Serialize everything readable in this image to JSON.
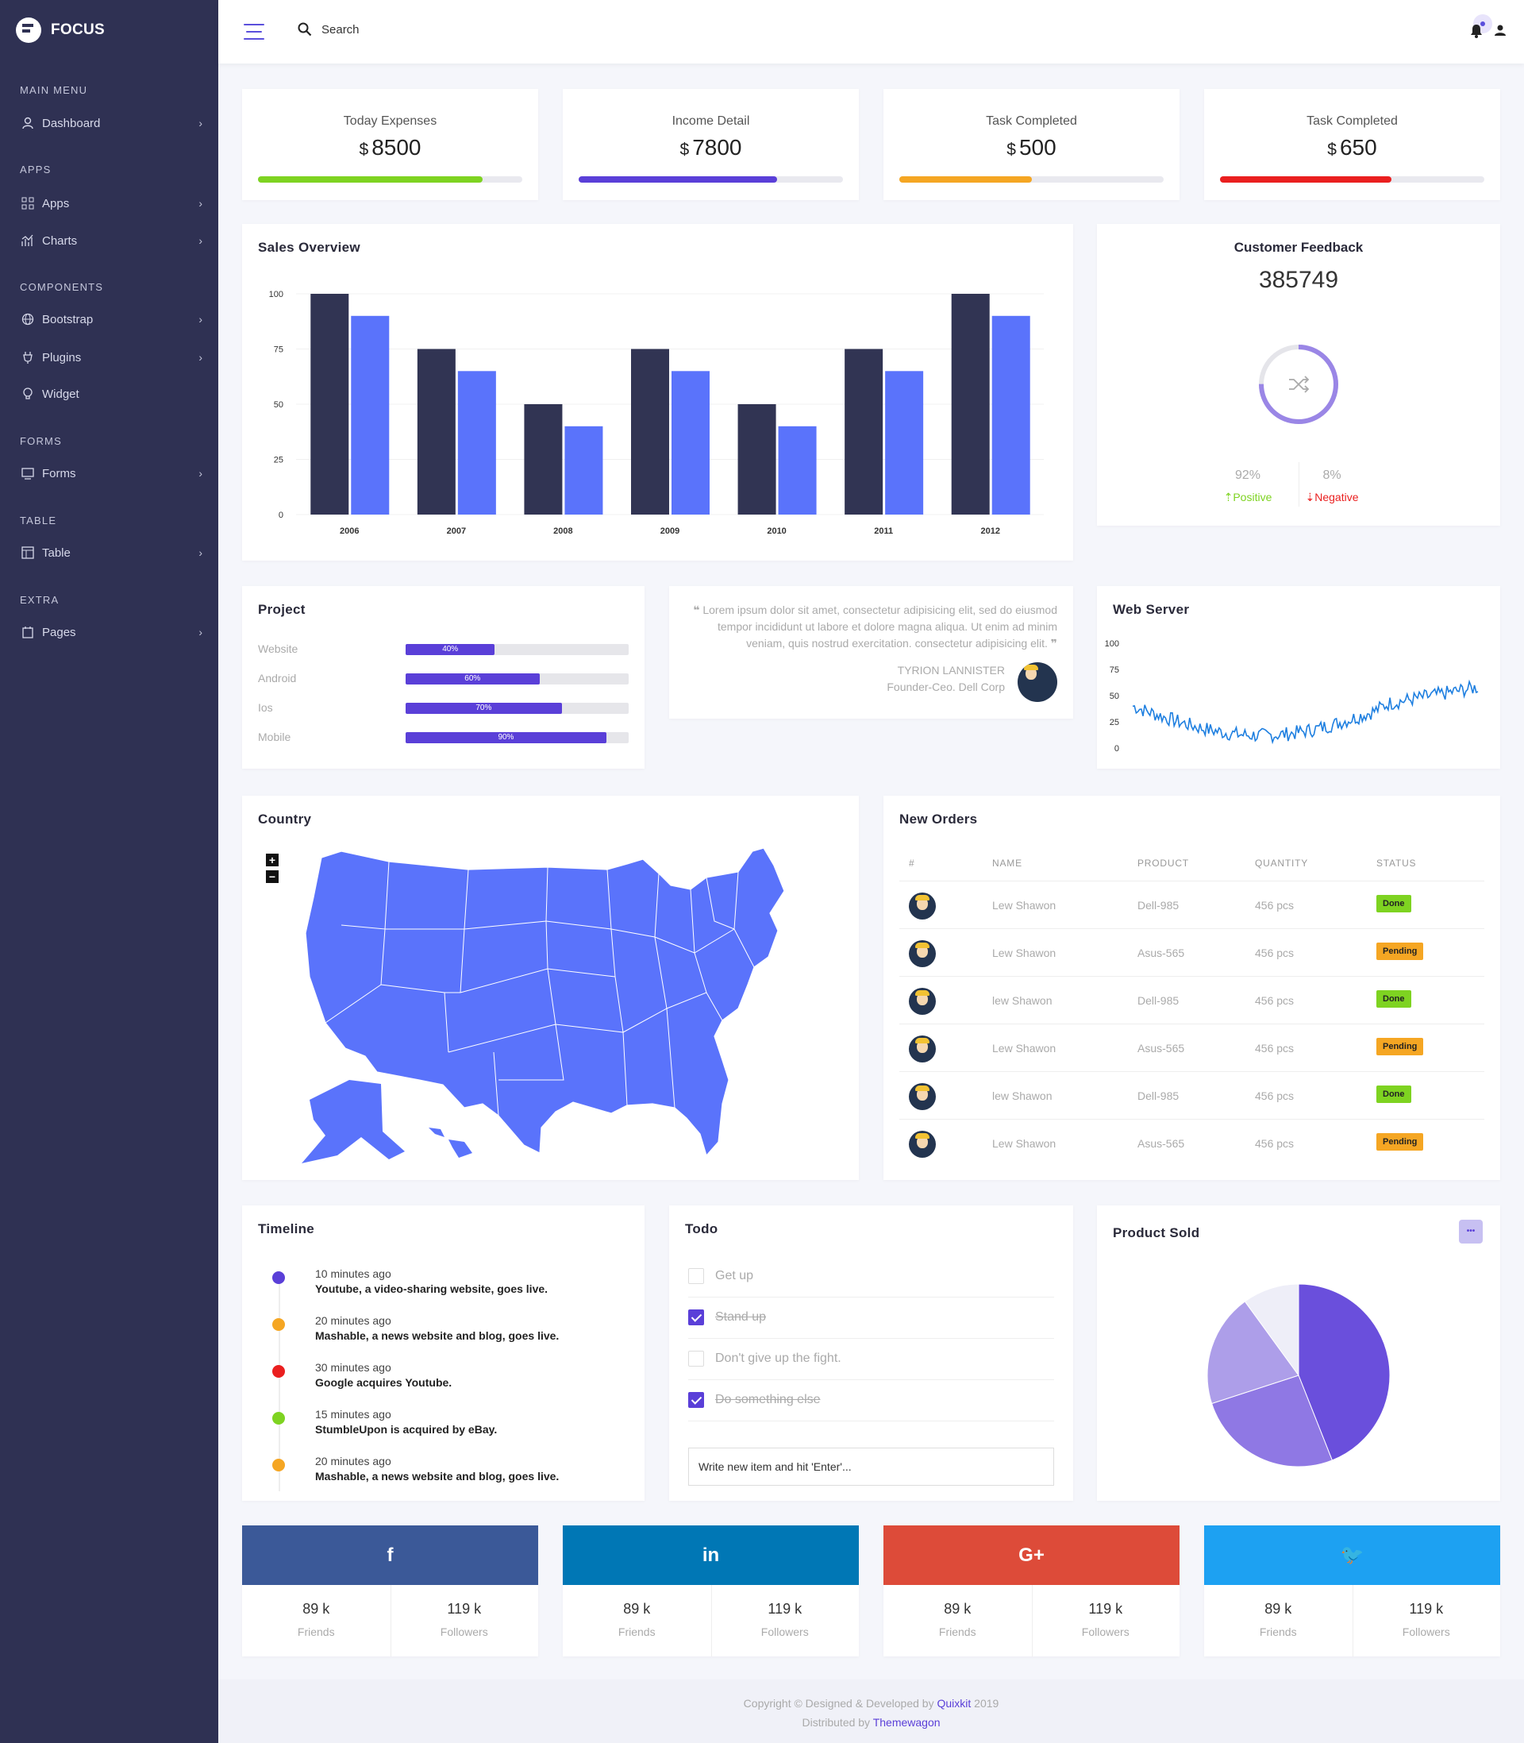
{
  "brand": {
    "name": "FOCUS"
  },
  "sidebar": {
    "sections": [
      {
        "title": "MAIN MENU",
        "items": [
          {
            "label": "Dashboard",
            "icon": "user-icon",
            "chevron": true
          }
        ]
      },
      {
        "title": "APPS",
        "items": [
          {
            "label": "Apps",
            "icon": "grid-icon",
            "chevron": true
          },
          {
            "label": "Charts",
            "icon": "chart-icon",
            "chevron": true
          }
        ]
      },
      {
        "title": "COMPONENTS",
        "items": [
          {
            "label": "Bootstrap",
            "icon": "globe-icon",
            "chevron": true
          },
          {
            "label": "Plugins",
            "icon": "plugin-icon",
            "chevron": true
          },
          {
            "label": "Widget",
            "icon": "bulb-icon",
            "chevron": false
          }
        ]
      },
      {
        "title": "FORMS",
        "items": [
          {
            "label": "Forms",
            "icon": "form-icon",
            "chevron": true
          }
        ]
      },
      {
        "title": "TABLE",
        "items": [
          {
            "label": "Table",
            "icon": "table-icon",
            "chevron": true
          }
        ]
      },
      {
        "title": "EXTRA",
        "items": [
          {
            "label": "Pages",
            "icon": "page-icon",
            "chevron": true
          }
        ]
      }
    ]
  },
  "topbar": {
    "search_placeholder": "Search"
  },
  "stats": [
    {
      "label": "Today Expenses",
      "currency": "$",
      "value": "8500",
      "progress": 0.85,
      "color": "#7ed321"
    },
    {
      "label": "Income Detail",
      "currency": "$",
      "value": "7800",
      "progress": 0.75,
      "color": "#5a3fd8"
    },
    {
      "label": "Task Completed",
      "currency": "$",
      "value": "500",
      "progress": 0.5,
      "color": "#f5a623"
    },
    {
      "label": "Task Completed",
      "currency": "$",
      "value": "650",
      "progress": 0.65,
      "color": "#ea1f1f"
    }
  ],
  "sales": {
    "title": "Sales Overview"
  },
  "chart_data": {
    "type": "bar",
    "categories": [
      "2006",
      "2007",
      "2008",
      "2009",
      "2010",
      "2011",
      "2012"
    ],
    "series": [
      {
        "values": [
          100,
          75,
          50,
          75,
          50,
          75,
          100
        ],
        "color": "#313453"
      },
      {
        "values": [
          90,
          65,
          40,
          65,
          40,
          65,
          90
        ],
        "color": "#5a73fb"
      }
    ],
    "yticks": [
      "100",
      "75",
      "50",
      "25",
      "0"
    ],
    "ylim": [
      0,
      100
    ],
    "grid": true
  },
  "feedback": {
    "title": "Customer Feedback",
    "value": "385749",
    "positive_pct": "92%",
    "positive_label": "Positive",
    "negative_pct": "8%",
    "negative_label": "Negative",
    "ring_fraction": 0.75
  },
  "project": {
    "title": "Project",
    "rows": [
      {
        "name": "Website",
        "pct": 0.4,
        "label": "40%"
      },
      {
        "name": "Android",
        "pct": 0.6,
        "label": "60%"
      },
      {
        "name": "Ios",
        "pct": 0.7,
        "label": "70%"
      },
      {
        "name": "Mobile",
        "pct": 0.9,
        "label": "90%"
      }
    ]
  },
  "quote": {
    "text": "Lorem ipsum dolor sit amet, consectetur adipisicing elit, sed do eiusmod tempor incididunt ut labore et dolore magna aliqua. Ut enim ad minim veniam, quis nostrud exercitation. consectetur adipisicing elit.",
    "author": "TYRION LANNISTER",
    "role": "Founder-Ceo. Dell Corp"
  },
  "webserver": {
    "title": "Web Server",
    "yticks": [
      "100",
      "75",
      "50",
      "25",
      "0"
    ]
  },
  "country": {
    "title": "Country",
    "zoom_in": "+",
    "zoom_out": "−"
  },
  "orders": {
    "title": "New Orders",
    "headers": [
      "#",
      "NAME",
      "PRODUCT",
      "QUANTITY",
      "STATUS"
    ],
    "rows": [
      {
        "name": "Lew Shawon",
        "product": "Dell-985",
        "qty": "456 pcs",
        "status": "Done"
      },
      {
        "name": "Lew Shawon",
        "product": "Asus-565",
        "qty": "456 pcs",
        "status": "Pending"
      },
      {
        "name": "lew Shawon",
        "product": "Dell-985",
        "qty": "456 pcs",
        "status": "Done"
      },
      {
        "name": "Lew Shawon",
        "product": "Asus-565",
        "qty": "456 pcs",
        "status": "Pending"
      },
      {
        "name": "lew Shawon",
        "product": "Dell-985",
        "qty": "456 pcs",
        "status": "Done"
      },
      {
        "name": "Lew Shawon",
        "product": "Asus-565",
        "qty": "456 pcs",
        "status": "Pending"
      }
    ]
  },
  "timeline": {
    "title": "Timeline",
    "items": [
      {
        "time": "10 minutes ago",
        "text": "Youtube, a video-sharing website, goes live.",
        "color": "#5a3fd8"
      },
      {
        "time": "20 minutes ago",
        "text": "Mashable, a news website and blog, goes live.",
        "color": "#f5a623"
      },
      {
        "time": "30 minutes ago",
        "text": "Google acquires Youtube.",
        "color": "#ea1f1f"
      },
      {
        "time": "15 minutes ago",
        "text": "StumbleUpon is acquired by eBay.",
        "color": "#7ed321"
      },
      {
        "time": "20 minutes ago",
        "text": "Mashable, a news website and blog, goes live.",
        "color": "#f5a623"
      }
    ]
  },
  "todo": {
    "title": "Todo",
    "items": [
      {
        "text": "Get up",
        "done": false
      },
      {
        "text": "Stand up",
        "done": true
      },
      {
        "text": "Don't give up the fight.",
        "done": false
      },
      {
        "text": "Do something else",
        "done": true
      }
    ],
    "input_placeholder": "Write new item and hit 'Enter'..."
  },
  "product_sold": {
    "title": "Product Sold",
    "more_label": "•••",
    "slices": [
      {
        "value": 44,
        "color": "#6a4fdc"
      },
      {
        "value": 26,
        "color": "#8f78e4"
      },
      {
        "value": 20,
        "color": "#ad9ee9"
      },
      {
        "value": 10,
        "color": "#eeeef8"
      }
    ]
  },
  "social": [
    {
      "network": "facebook",
      "icon": "facebook-icon",
      "glyph": "f",
      "color": "#3b5998",
      "friends": "89 k",
      "friends_label": "Friends",
      "followers": "119 k",
      "followers_label": "Followers"
    },
    {
      "network": "linkedin",
      "icon": "linkedin-icon",
      "glyph": "in",
      "color": "#0077b5",
      "friends": "89 k",
      "friends_label": "Friends",
      "followers": "119 k",
      "followers_label": "Followers"
    },
    {
      "network": "google-plus",
      "icon": "google-plus-icon",
      "glyph": "G+",
      "color": "#dd4b39",
      "friends": "89 k",
      "friends_label": "Friends",
      "followers": "119 k",
      "followers_label": "Followers"
    },
    {
      "network": "twitter",
      "icon": "twitter-icon",
      "glyph": "🐦",
      "color": "#1da1f2",
      "friends": "89 k",
      "friends_label": "Friends",
      "followers": "119 k",
      "followers_label": "Followers"
    }
  ],
  "footer": {
    "line1_prefix": "Copyright © Designed & Developed by",
    "line1_link": "Quixkit",
    "line1_suffix": "2019",
    "line2_prefix": "Distributed by",
    "line2_link": "Themewagon"
  }
}
